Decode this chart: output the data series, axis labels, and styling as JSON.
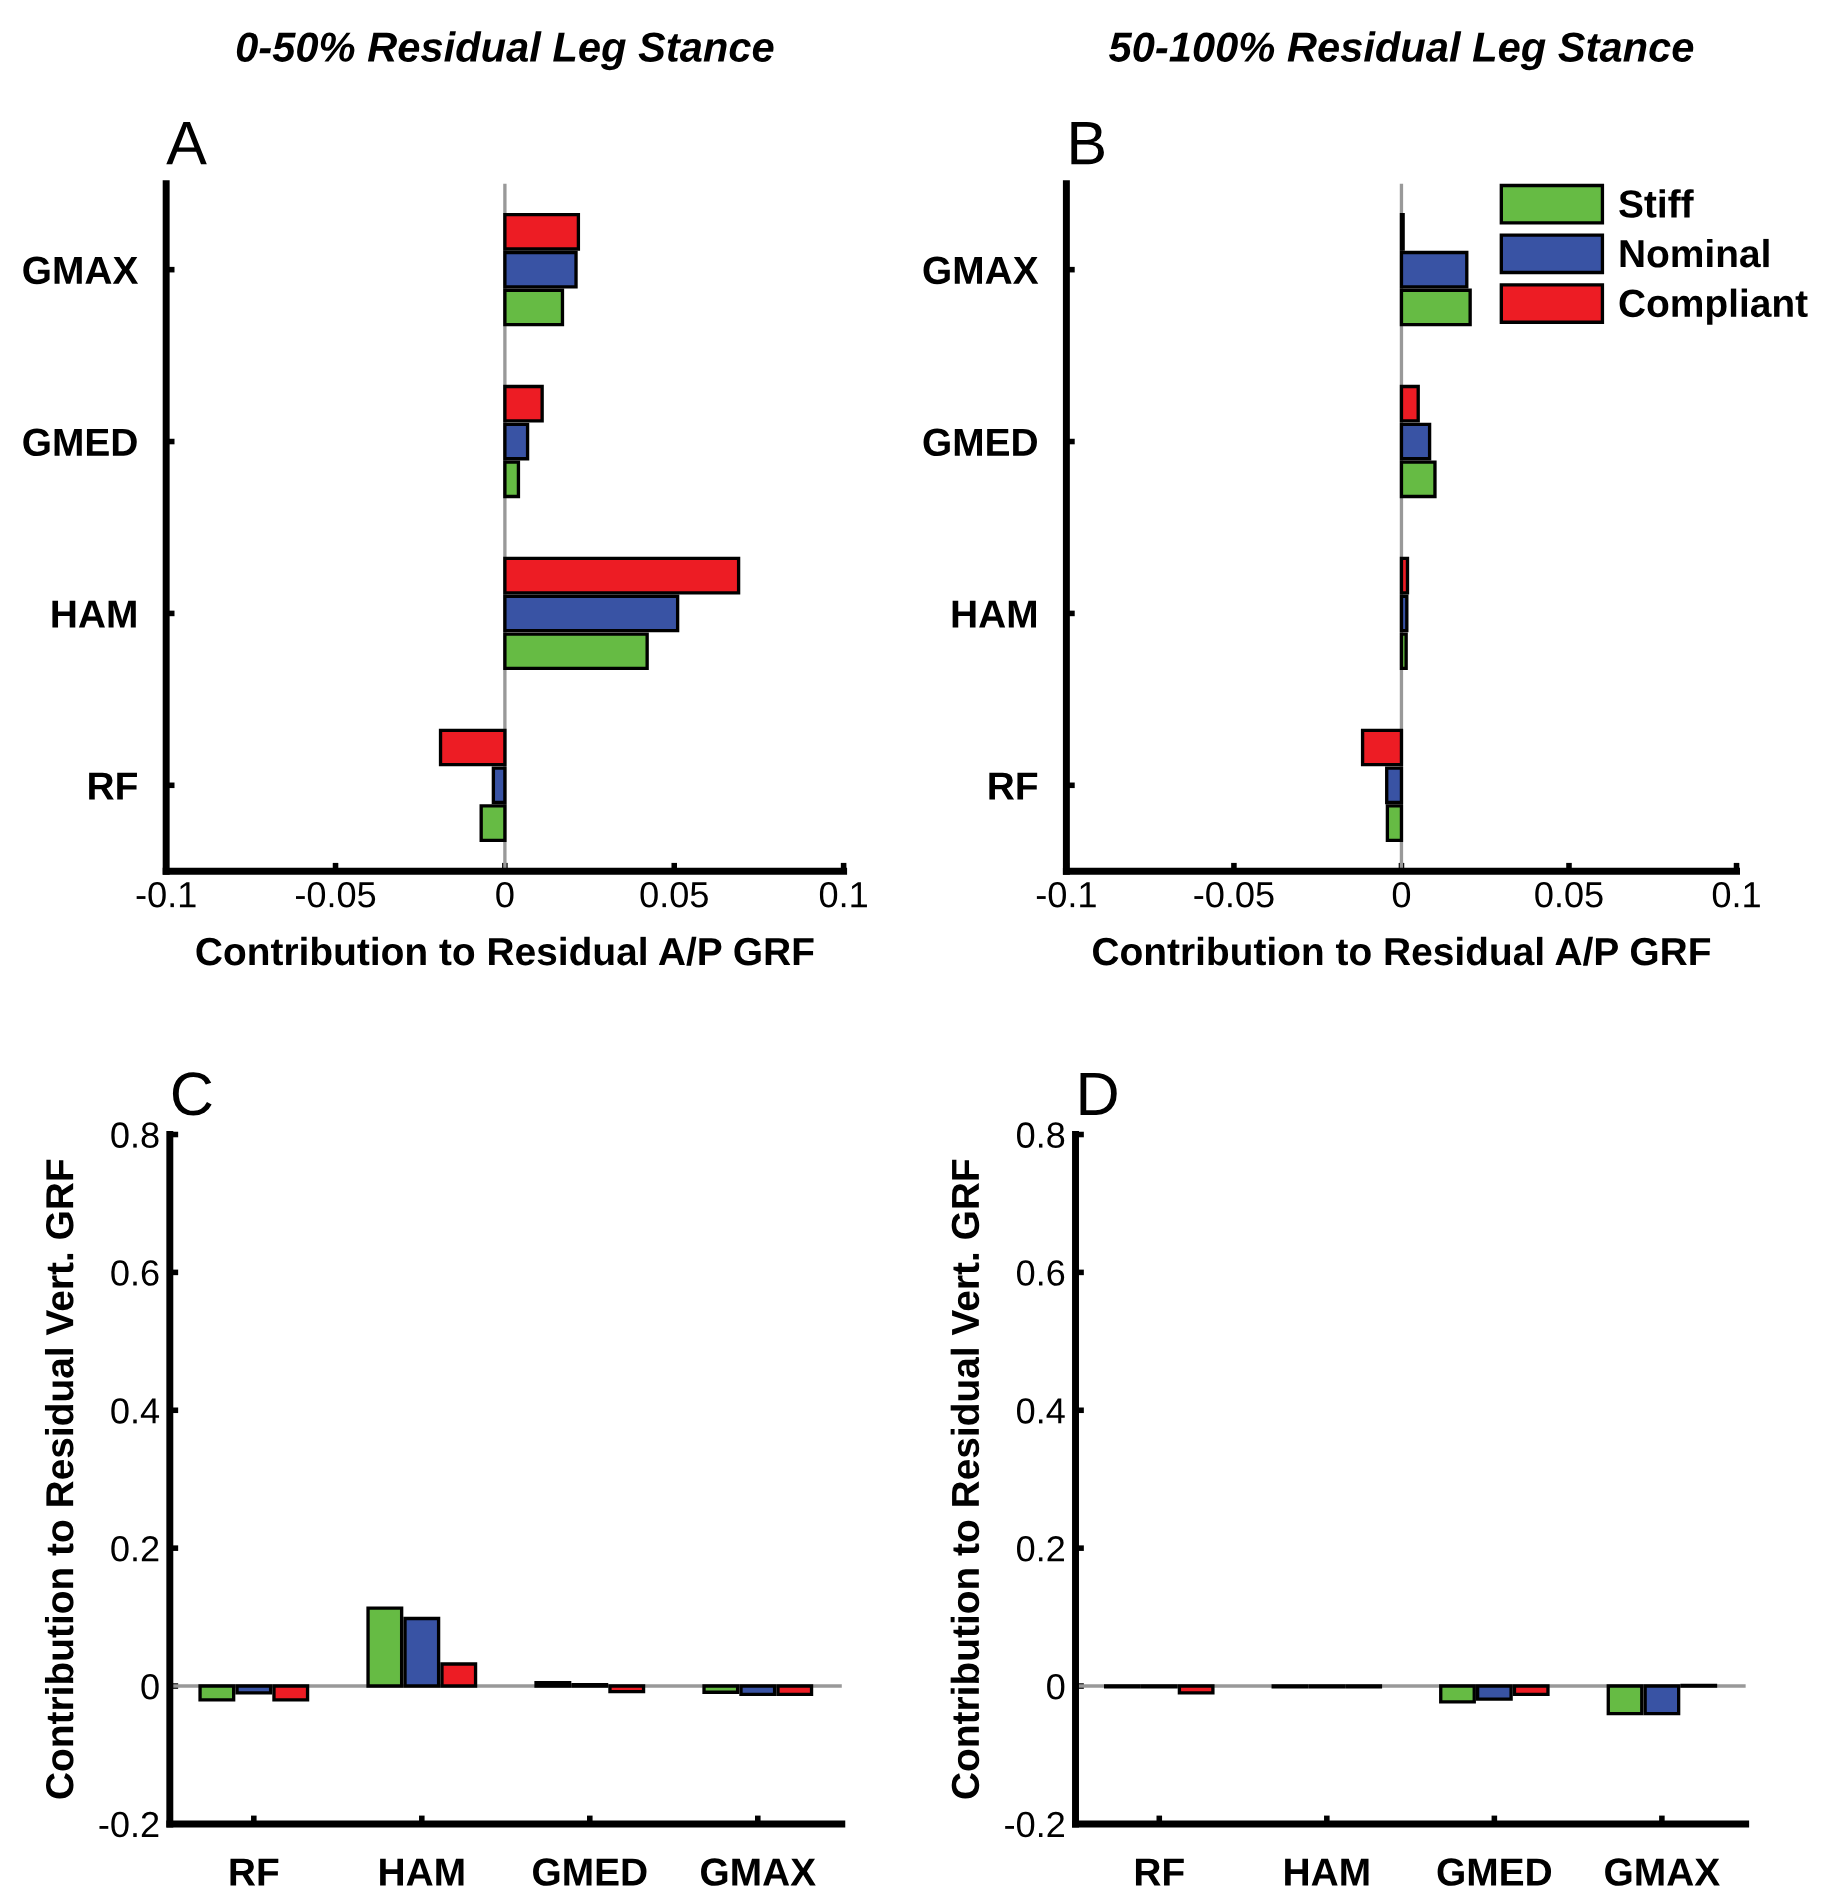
{
  "chart_data": [
    {
      "type": "bar",
      "orientation": "horizontal",
      "title": "0-50% Residual Leg Stance",
      "xlabel": "Contribution to Residual A/P GRF",
      "annotations": [
        "A"
      ],
      "categories": [
        "GMAX",
        "GMED",
        "HAM",
        "RF"
      ],
      "series": [
        {
          "color": "#66bb44",
          "values": [
            0.017,
            0.004,
            0.042,
            -0.007
          ]
        },
        {
          "color": "#3953a4",
          "values": [
            0.021,
            0.0067,
            0.051,
            -0.0034
          ]
        },
        {
          "color": "#ed1c24",
          "values": [
            0.0217,
            0.011,
            0.069,
            -0.019
          ]
        }
      ],
      "xlim": [
        -0.1,
        0.1
      ],
      "xticks": [
        -0.1,
        -0.05,
        0,
        0.05,
        0.1
      ],
      "ref_lines": [
        {
          "axis": "x",
          "value": 0,
          "color": "#999999"
        }
      ],
      "grid": false
    },
    {
      "type": "bar",
      "orientation": "horizontal",
      "title": "50-100% Residual Leg Stance",
      "xlabel": "Contribution to Residual A/P GRF",
      "annotations": [
        "B"
      ],
      "categories": [
        "GMAX",
        "GMED",
        "HAM",
        "RF"
      ],
      "series": [
        {
          "name": "Stiff",
          "color": "#66bb44",
          "values": [
            0.0205,
            0.01,
            0.0014,
            -0.0042
          ]
        },
        {
          "name": "Nominal",
          "color": "#3953a4",
          "values": [
            0.0195,
            0.0084,
            0.0016,
            -0.0044
          ]
        },
        {
          "name": "Compliant",
          "color": "#ed1c24",
          "values": [
            0.0005,
            0.005,
            0.0018,
            -0.0116
          ]
        }
      ],
      "xlim": [
        -0.1,
        0.1
      ],
      "xticks": [
        -0.1,
        -0.05,
        0,
        0.05,
        0.1
      ],
      "ref_lines": [
        {
          "axis": "x",
          "value": 0,
          "color": "#999999"
        }
      ],
      "grid": false,
      "legend": "top right"
    },
    {
      "type": "bar",
      "ylabel": "Contribution to Residual Vert. GRF",
      "annotations": [
        "C"
      ],
      "categories": [
        "RF",
        "HAM",
        "GMED",
        "GMAX"
      ],
      "series": [
        {
          "color": "#66bb44",
          "values": [
            -0.02,
            0.113,
            0.005,
            -0.009
          ]
        },
        {
          "color": "#3953a4",
          "values": [
            -0.01,
            0.098,
            0.002,
            -0.012
          ]
        },
        {
          "color": "#ed1c24",
          "values": [
            -0.02,
            0.032,
            -0.008,
            -0.012
          ]
        }
      ],
      "ylim": [
        -0.2,
        0.8
      ],
      "yticks": [
        -0.2,
        0,
        0.2,
        0.4,
        0.6,
        0.8
      ],
      "ref_lines": [
        {
          "axis": "y",
          "value": 0,
          "color": "#999999"
        }
      ],
      "grid": false
    },
    {
      "type": "bar",
      "ylabel": "Contribution to Residual Vert. GRF",
      "annotations": [
        "D"
      ],
      "categories": [
        "RF",
        "HAM",
        "GMED",
        "GMAX"
      ],
      "series": [
        {
          "color": "#66bb44",
          "values": [
            -0.001,
            -0.001,
            -0.023,
            -0.04
          ]
        },
        {
          "color": "#3953a4",
          "values": [
            -0.001,
            -0.001,
            -0.019,
            -0.04
          ]
        },
        {
          "color": "#ed1c24",
          "values": [
            -0.01,
            -0.001,
            -0.012,
            0.001
          ]
        }
      ],
      "ylim": [
        -0.2,
        0.8
      ],
      "yticks": [
        -0.2,
        0,
        0.2,
        0.4,
        0.6,
        0.8
      ],
      "ref_lines": [
        {
          "axis": "y",
          "value": 0,
          "color": "#999999"
        }
      ],
      "grid": false
    }
  ]
}
